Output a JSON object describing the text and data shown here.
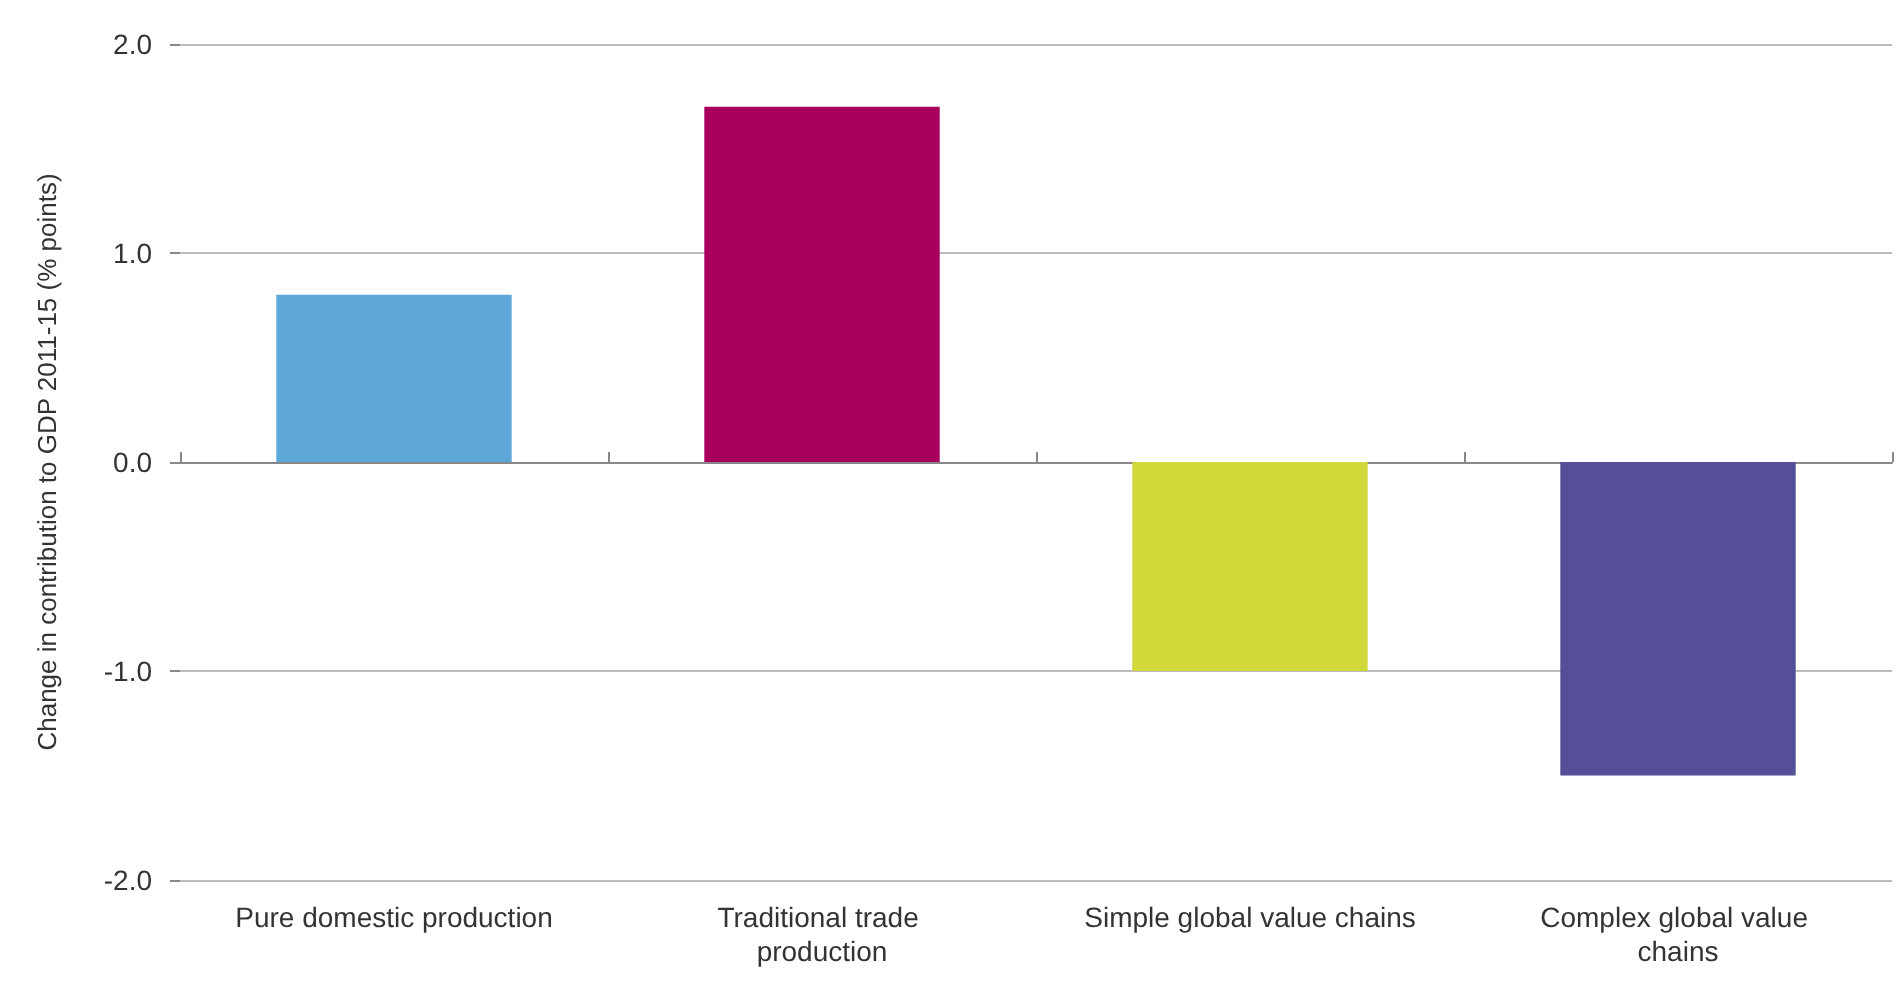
{
  "chart_data": {
    "type": "bar",
    "ylabel": "Change in contribution to GDP 2011-15 (% points)",
    "categories": [
      "Pure domestic production",
      "Traditional trade production",
      "Simple global value chains",
      "Complex global value chains"
    ],
    "values": [
      0.8,
      1.7,
      -1.0,
      -1.5
    ],
    "colors": [
      "#5ea7d9",
      "#a8005c",
      "#d1d93a",
      "#554f98"
    ],
    "ylim": [
      -2,
      2
    ],
    "yticks": [
      {
        "value": -2,
        "label": "-2.0"
      },
      {
        "value": -1,
        "label": "-1.0"
      },
      {
        "value": 0,
        "label": "0.0"
      },
      {
        "value": 1,
        "label": "1.0"
      },
      {
        "value": 2,
        "label": "2.0"
      }
    ],
    "grid": "y"
  }
}
